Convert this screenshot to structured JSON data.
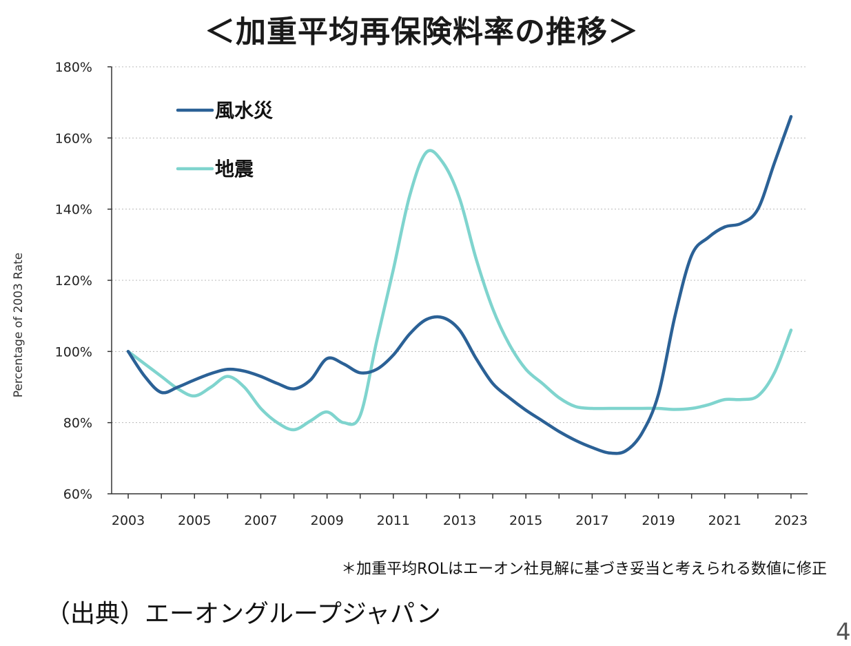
{
  "chart_data": {
    "type": "line",
    "title": "＜加重平均再保険料率の推移＞",
    "xlabel": "",
    "ylabel": "Percentage of 2003 Rate",
    "x": [
      2003,
      2003.5,
      2004,
      2004.5,
      2005,
      2005.5,
      2006,
      2006.5,
      2007,
      2007.5,
      2008,
      2008.5,
      2009,
      2009.5,
      2010,
      2010.5,
      2011,
      2011.5,
      2012,
      2012.5,
      2013,
      2013.5,
      2014,
      2014.5,
      2015,
      2015.5,
      2016,
      2016.5,
      2017,
      2017.5,
      2018,
      2018.5,
      2019,
      2019.5,
      2020,
      2020.5,
      2021,
      2021.5,
      2022,
      2022.5,
      2023
    ],
    "xticks": [
      "2003",
      "2005",
      "2007",
      "2009",
      "2011",
      "2013",
      "2015",
      "2017",
      "2019",
      "2021",
      "2023"
    ],
    "xlim": [
      2002.5,
      2023.5
    ],
    "ylim": [
      60,
      180
    ],
    "yticks": [
      "60%",
      "80%",
      "100%",
      "120%",
      "140%",
      "160%",
      "180%"
    ],
    "grid": true,
    "legend_position": "top-left",
    "series": [
      {
        "name": "風水災",
        "color": "#2b6196",
        "values": [
          100,
          93,
          88.5,
          90,
          92,
          93.8,
          95,
          94.5,
          93,
          91,
          89.5,
          92,
          98,
          96.5,
          94,
          95,
          99,
          105,
          109,
          109.5,
          106,
          98,
          91,
          87,
          83.5,
          80.5,
          77.5,
          75,
          73,
          71.5,
          72,
          77,
          88,
          110,
          127,
          132,
          135,
          136,
          140,
          153,
          166
        ]
      },
      {
        "name": "地震",
        "color": "#7fd4ce",
        "values": [
          100,
          96.5,
          93,
          89.5,
          87.5,
          90,
          93,
          90,
          84,
          80,
          78,
          80.5,
          83,
          80,
          82,
          103,
          123,
          144,
          156,
          153,
          143,
          126,
          112,
          102,
          95,
          91,
          87,
          84.5,
          84,
          84,
          84,
          84,
          84,
          83.7,
          84,
          85,
          86.5,
          86.5,
          87.5,
          94,
          106
        ]
      }
    ]
  },
  "footnote": "＊加重平均ROLはエーオン社見解に基づき妥当と考えられる数値に修正",
  "source": "（出典）エーオングループジャパン",
  "page_number": "4"
}
